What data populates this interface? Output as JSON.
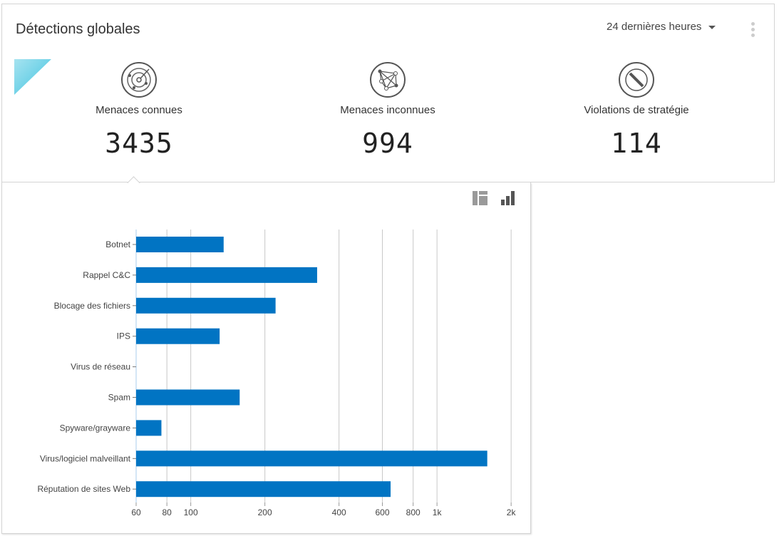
{
  "header": {
    "title": "Détections globales",
    "time_range": "24 dernières heures"
  },
  "stats": [
    {
      "label": "Menaces connues",
      "value": "3435",
      "icon": "radar-icon"
    },
    {
      "label": "Menaces inconnues",
      "value": "994",
      "icon": "network-icon"
    },
    {
      "label": "Violations de stratégie",
      "value": "114",
      "icon": "prohibited-icon"
    }
  ],
  "colors": {
    "bar": "#0174c3",
    "accent": "#3fc3e0"
  },
  "chart_data": {
    "type": "bar",
    "orientation": "horizontal",
    "x_scale": "log",
    "xlim": [
      60,
      2000
    ],
    "grid": true,
    "categories": [
      "Botnet",
      "Rappel C&C",
      "Blocage des fichiers",
      "IPS",
      "Virus de réseau",
      "Spam",
      "Spyware/grayware",
      "Virus/logiciel malveillant",
      "Réputation de sites Web"
    ],
    "values": [
      136,
      326,
      221,
      131,
      0,
      158,
      76,
      1600,
      648
    ],
    "x_ticks": [
      60,
      80,
      100,
      200,
      400,
      600,
      800,
      1000,
      2000
    ],
    "x_tick_labels": [
      "60",
      "80",
      "100",
      "200",
      "400",
      "600",
      "800",
      "1k",
      "2k"
    ]
  }
}
